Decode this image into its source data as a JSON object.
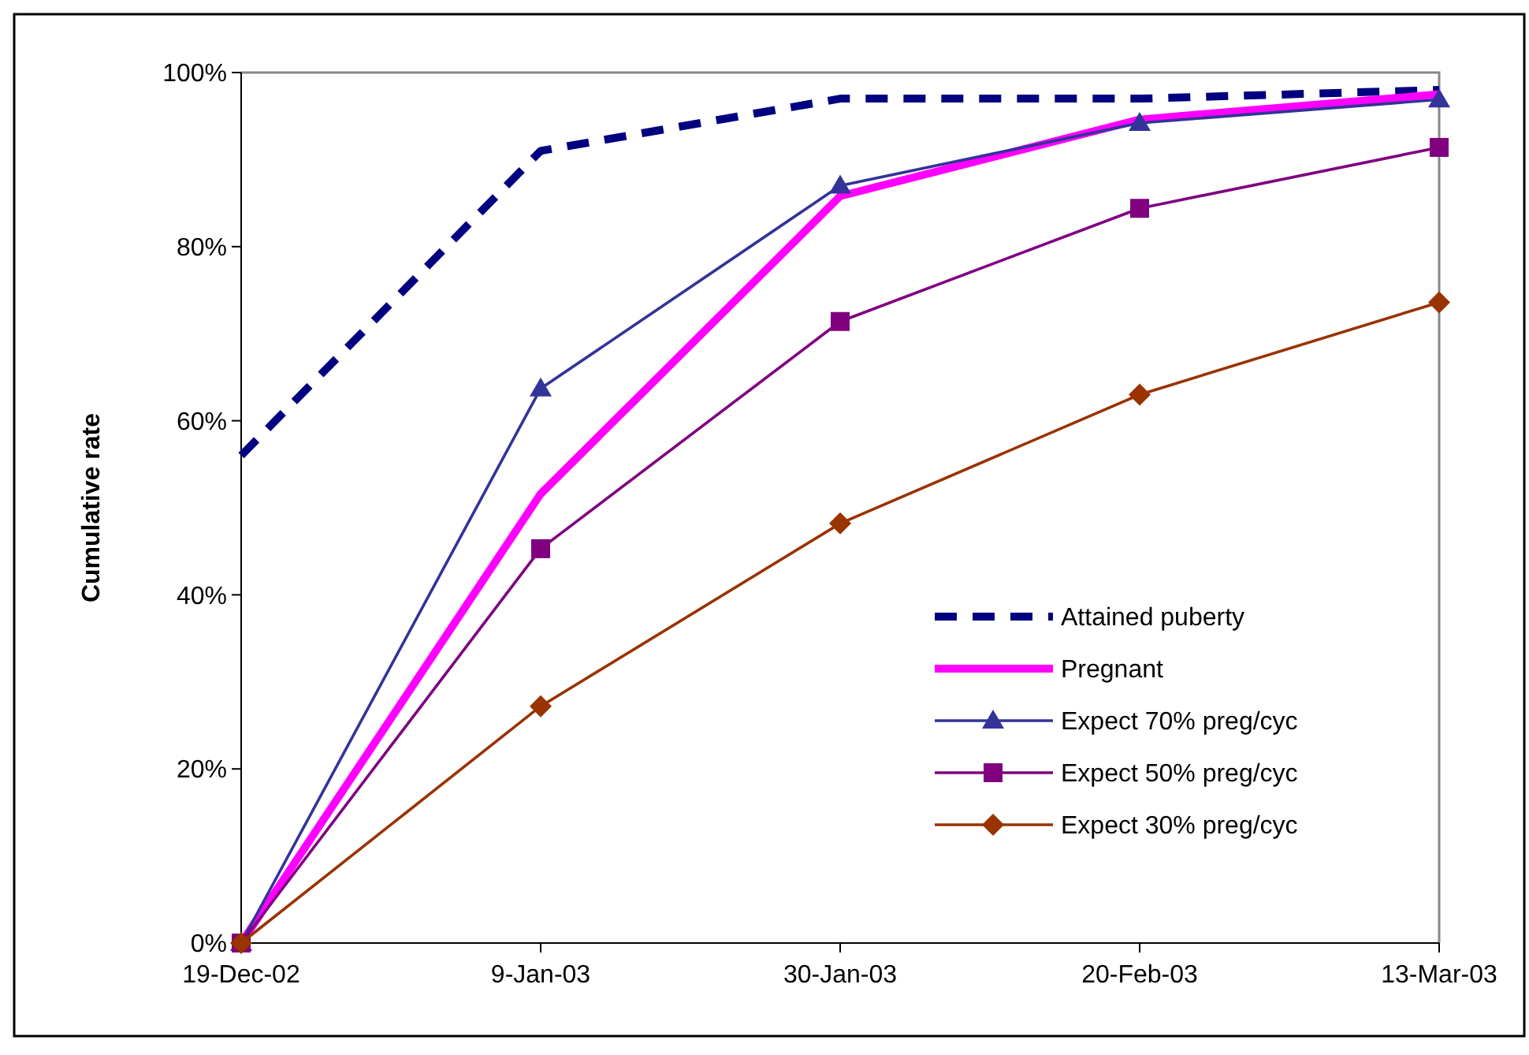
{
  "chart_data": {
    "type": "line",
    "ylabel": "Cumulative rate",
    "x": [
      "2002-12-19",
      "2003-01-09",
      "2003-01-30",
      "2003-02-20",
      "2003-03-13"
    ],
    "xlim": [
      "2002-12-19",
      "2003-03-13"
    ],
    "xticks": [
      {
        "value": "2002-12-19",
        "label": "19-Dec-02"
      },
      {
        "value": "2003-01-09",
        "label": "9-Jan-03"
      },
      {
        "value": "2003-01-30",
        "label": "30-Jan-03"
      },
      {
        "value": "2003-02-20",
        "label": "20-Feb-03"
      },
      {
        "value": "2003-03-13",
        "label": "13-Mar-03"
      }
    ],
    "ylim": [
      0,
      100
    ],
    "yticks": [
      {
        "value": 0,
        "label": "0%"
      },
      {
        "value": 20,
        "label": "20%"
      },
      {
        "value": 40,
        "label": "40%"
      },
      {
        "value": 60,
        "label": "60%"
      },
      {
        "value": 80,
        "label": "80%"
      },
      {
        "value": 100,
        "label": "100%"
      }
    ],
    "grid": false,
    "legend": "bottom right",
    "series": [
      {
        "name": "Attained puberty",
        "color": "#000080",
        "line_style": "dashed",
        "marker": "none",
        "values": [
          56,
          91,
          97,
          97,
          98
        ]
      },
      {
        "name": "Pregnant",
        "color": "#ff00ff",
        "line_style": "solid",
        "marker": "none",
        "values": [
          0,
          51.6,
          85.8,
          94.6,
          97.5
        ]
      },
      {
        "name": "Expect 70% preg/cyc",
        "color": "#333399",
        "line_style": "solid",
        "marker": "triangle",
        "values": [
          0,
          63.7,
          87,
          94.2,
          96.9
        ]
      },
      {
        "name": "Expect 50% preg/cyc",
        "color": "#800080",
        "line_style": "solid",
        "marker": "square",
        "values": [
          0,
          45.3,
          71.4,
          84.4,
          91.4
        ]
      },
      {
        "name": "Expect 30% preg/cyc",
        "color": "#993300",
        "line_style": "solid",
        "marker": "diamond",
        "values": [
          0,
          27.2,
          48.2,
          63,
          73.6
        ]
      }
    ]
  }
}
